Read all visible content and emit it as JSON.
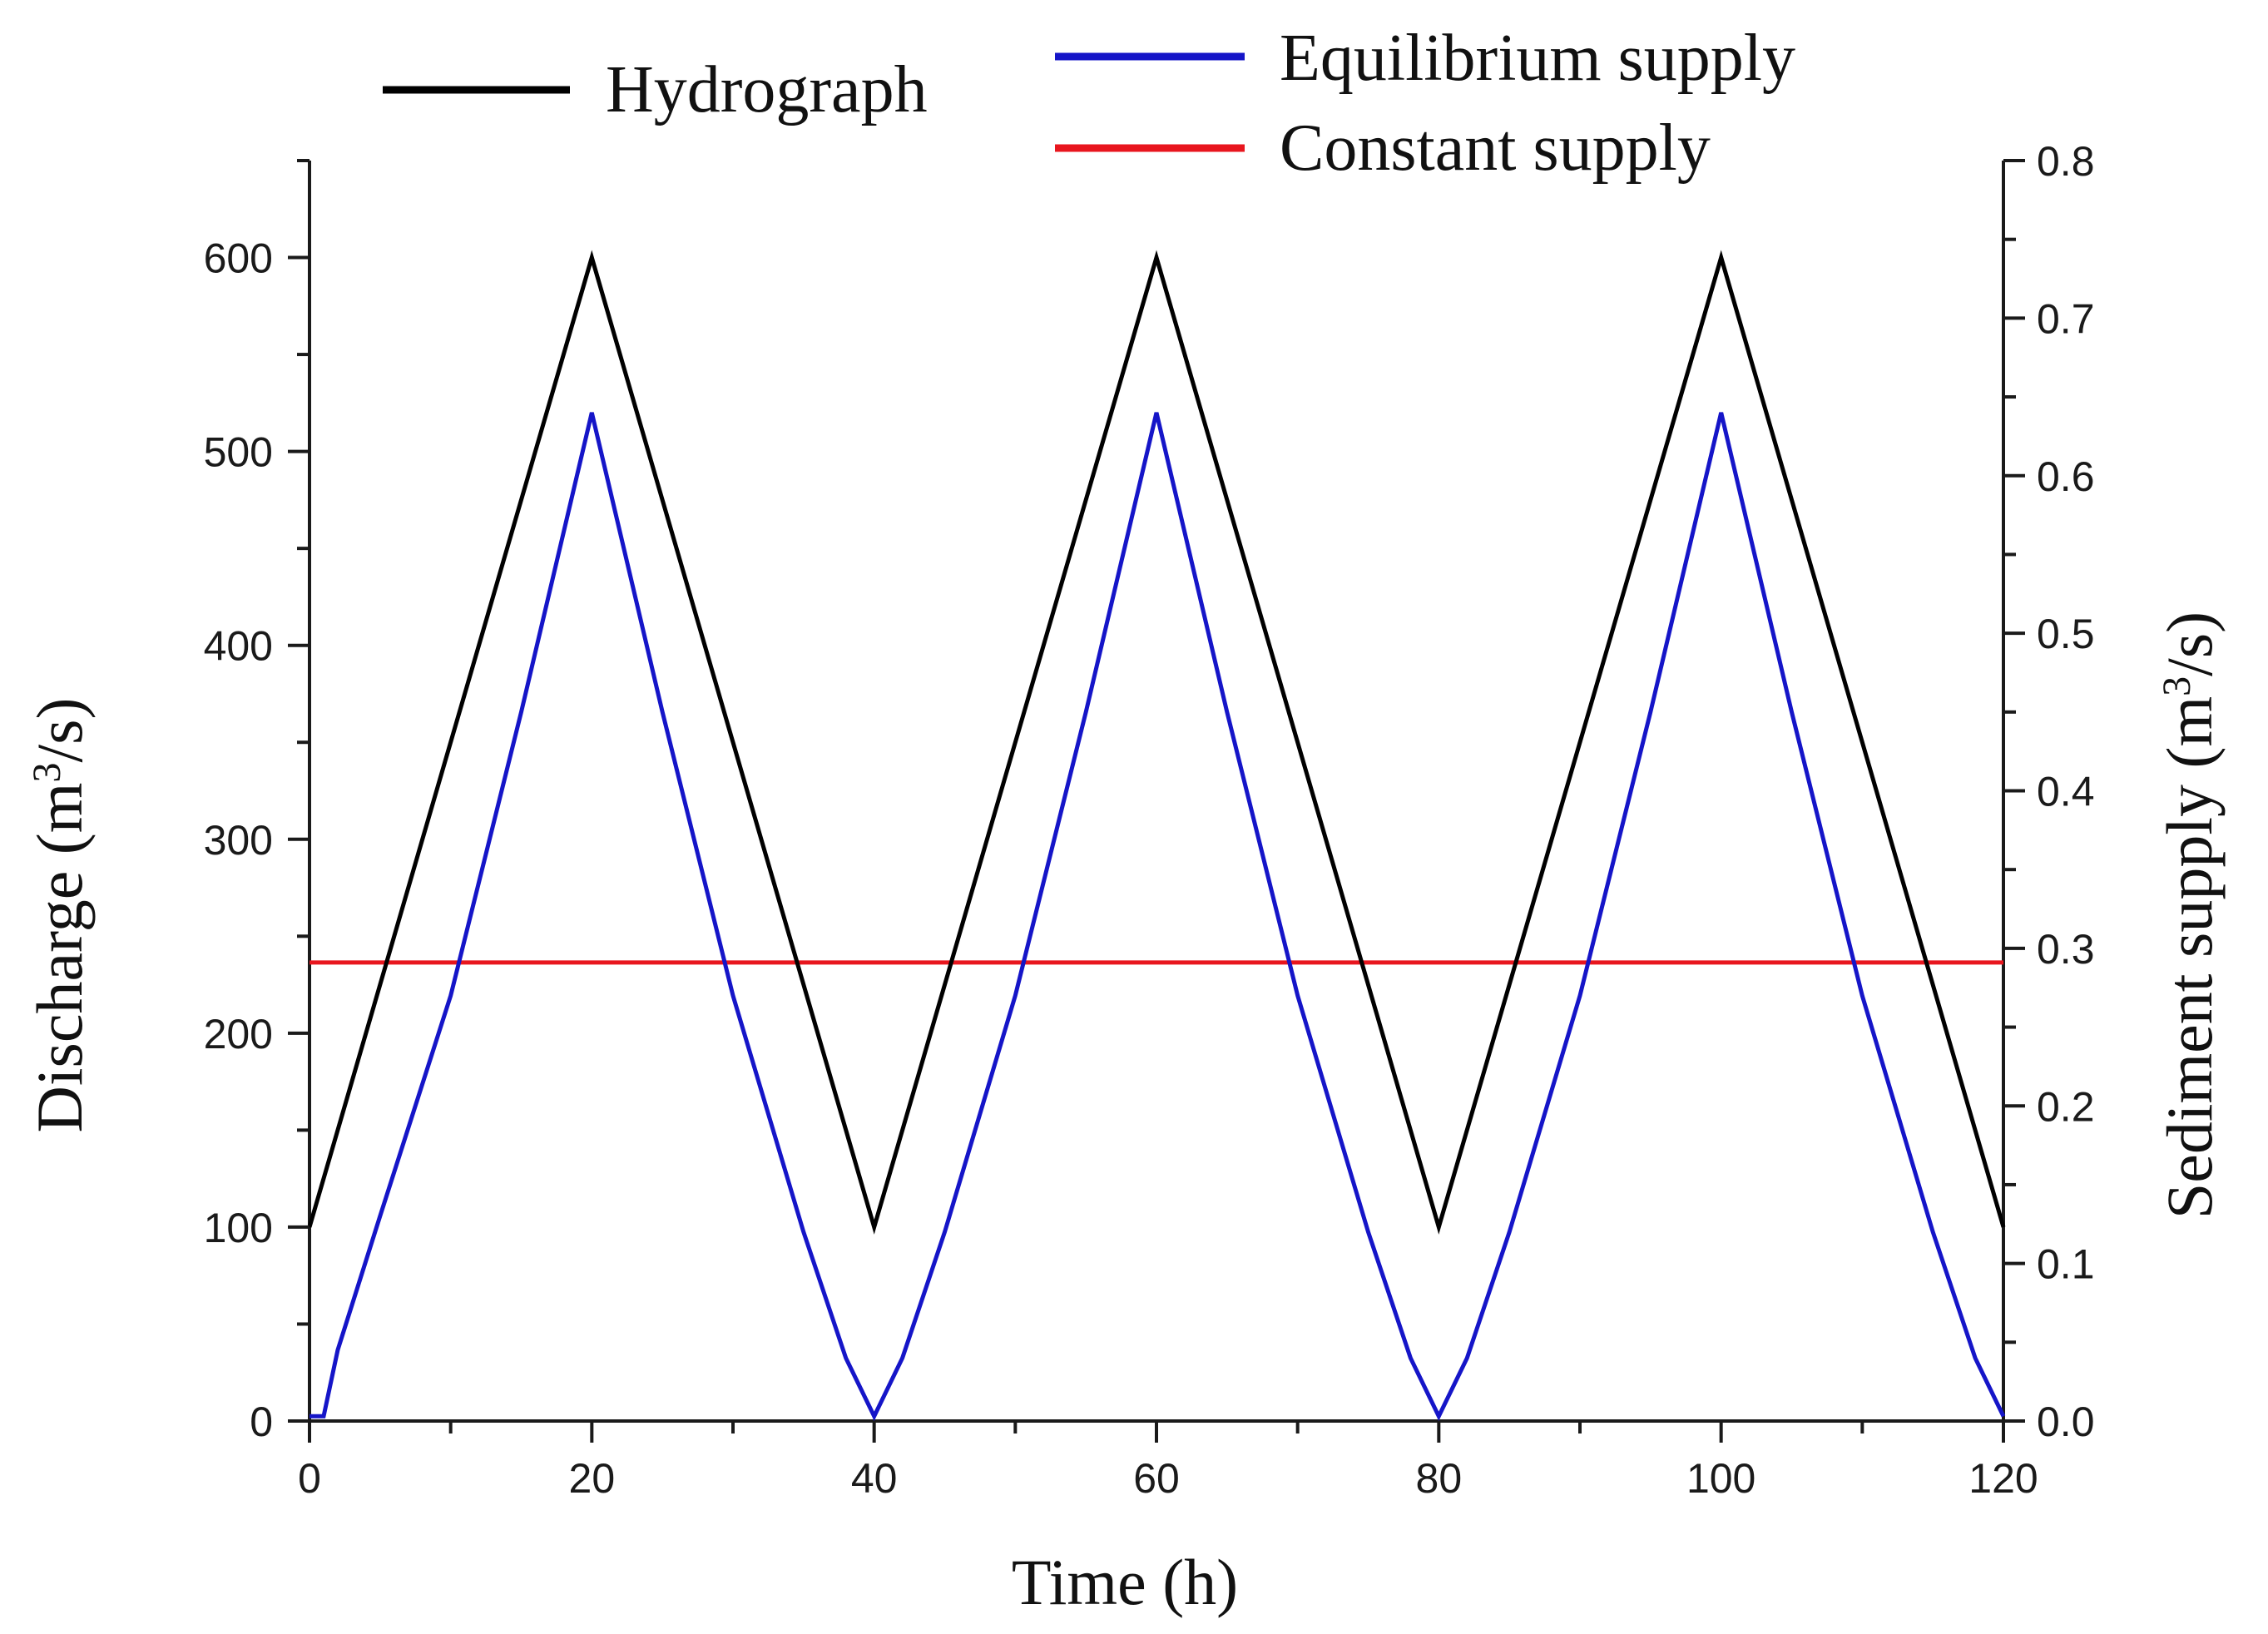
{
  "chart_data": {
    "type": "line",
    "title": "",
    "xlabel": "Time (h)",
    "ylabel": {
      "prefix": "Discharge (m",
      "sup": "3",
      "suffix": "/s)"
    },
    "y2label": {
      "prefix": "Sediment supply (m",
      "sup": "3",
      "suffix": "/s)"
    },
    "xlim": [
      0,
      120
    ],
    "ylim": [
      0,
      650
    ],
    "y2lim": [
      0,
      0.8
    ],
    "x_ticks": [
      0,
      20,
      40,
      60,
      80,
      100,
      120
    ],
    "y_ticks": [
      0,
      100,
      200,
      300,
      400,
      500,
      600
    ],
    "y2_ticks": [
      "0.0",
      "0.1",
      "0.2",
      "0.3",
      "0.4",
      "0.5",
      "0.6",
      "0.7",
      "0.8"
    ],
    "grid": false,
    "legend_position": "top",
    "series": [
      {
        "name": "Hydrograph",
        "axis": "left",
        "color": "#000000",
        "x": [
          0,
          20,
          40,
          60,
          80,
          100,
          120
        ],
        "y": [
          100,
          600,
          100,
          600,
          100,
          600,
          100
        ]
      },
      {
        "name": "Equilibrium supply",
        "axis": "right",
        "color": "#1515c8",
        "x": [
          0,
          1,
          2,
          5,
          10,
          15,
          20,
          25,
          30,
          35,
          38,
          40,
          42,
          45,
          50,
          55,
          60,
          65,
          70,
          75,
          78,
          80,
          82,
          85,
          90,
          95,
          100,
          105,
          110,
          115,
          118,
          120
        ],
        "y": [
          0.003,
          0.003,
          0.045,
          0.13,
          0.27,
          0.45,
          0.64,
          0.45,
          0.27,
          0.12,
          0.04,
          0.003,
          0.04,
          0.12,
          0.27,
          0.45,
          0.64,
          0.45,
          0.27,
          0.12,
          0.04,
          0.003,
          0.04,
          0.12,
          0.27,
          0.45,
          0.64,
          0.45,
          0.27,
          0.12,
          0.04,
          0.003
        ]
      },
      {
        "name": "Constant supply",
        "axis": "right",
        "color": "#e8161e",
        "x": [
          0,
          120
        ],
        "y": [
          0.291,
          0.291
        ]
      }
    ]
  }
}
